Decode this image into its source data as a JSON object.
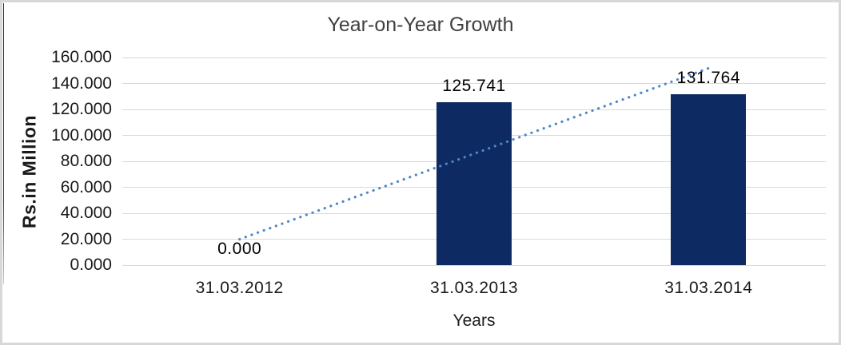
{
  "chart_data": {
    "type": "bar",
    "title": "Year-on-Year Growth",
    "xlabel": "Years",
    "ylabel": "Rs.in Million",
    "categories": [
      "31.03.2012",
      "31.03.2013",
      "31.03.2014"
    ],
    "values": [
      0,
      125.741,
      131.764
    ],
    "data_labels": [
      "0.000",
      "125.741",
      "131.764"
    ],
    "ylim": [
      0,
      160
    ],
    "ytick_step": 20,
    "yticks": [
      {
        "value": 160,
        "label": "160.000"
      },
      {
        "value": 140,
        "label": "140.000"
      },
      {
        "value": 120,
        "label": "120.000"
      },
      {
        "value": 100,
        "label": "100.000"
      },
      {
        "value": 80,
        "label": "80.000"
      },
      {
        "value": 60,
        "label": "60.000"
      },
      {
        "value": 40,
        "label": "40.000"
      },
      {
        "value": 20,
        "label": "20.000"
      },
      {
        "value": 0,
        "label": "0.000"
      }
    ],
    "grid": true,
    "legend_position": "none",
    "bar_color": "#0d2a63",
    "gridline_color": "#d9d9d9",
    "trendline": {
      "type": "linear",
      "style": "dotted",
      "color": "#4e86c8"
    }
  }
}
